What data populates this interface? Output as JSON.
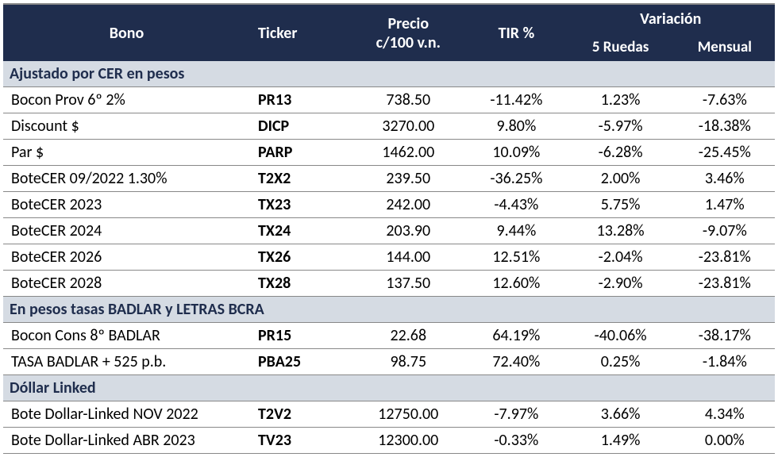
{
  "header": {
    "bono": "Bono",
    "ticker": "Ticker",
    "precio": "Precio c/100 v.n.",
    "precio_line1": "Precio",
    "precio_line2": "c/100 v.n.",
    "tir": "TIR %",
    "variacion": "Variación",
    "var_5ruedas": "5 Ruedas",
    "var_mensual": "Mensual"
  },
  "colors": {
    "header_bg": "#1f2d4d",
    "header_fg": "#ffffff",
    "section_bg": "#d5dbe3",
    "section_fg": "#1f2d4d",
    "row_bg": "#ffffff",
    "row_fg": "#000000",
    "border": "#888888"
  },
  "sections": [
    {
      "title": "Ajustado por CER en pesos",
      "rows": [
        {
          "name": "Bocon Prov 6º 2%",
          "ticker": "PR13",
          "precio": "738.50",
          "tir": "-11.42%",
          "var5": "1.23%",
          "varmes": "-7.63%"
        },
        {
          "name": "Discount $",
          "ticker": "DICP",
          "precio": "3270.00",
          "tir": "9.80%",
          "var5": "-5.97%",
          "varmes": "-18.38%"
        },
        {
          "name": "Par $",
          "ticker": "PARP",
          "precio": "1462.00",
          "tir": "10.09%",
          "var5": "-6.28%",
          "varmes": "-25.45%"
        },
        {
          "name": "BoteCER  09/2022 1.30%",
          "ticker": "T2X2",
          "precio": "239.50",
          "tir": "-36.25%",
          "var5": "2.00%",
          "varmes": "3.46%"
        },
        {
          "name": "BoteCER 2023",
          "ticker": "TX23",
          "precio": "242.00",
          "tir": "-4.43%",
          "var5": "5.75%",
          "varmes": "1.47%"
        },
        {
          "name": "BoteCER 2024",
          "ticker": "TX24",
          "precio": "203.90",
          "tir": "9.44%",
          "var5": "13.28%",
          "varmes": "-9.07%"
        },
        {
          "name": "BoteCER 2026",
          "ticker": "TX26",
          "precio": "144.00",
          "tir": "12.51%",
          "var5": "-2.04%",
          "varmes": "-23.81%"
        },
        {
          "name": "BoteCER 2028",
          "ticker": "TX28",
          "precio": "137.50",
          "tir": "12.60%",
          "var5": "-2.90%",
          "varmes": "-23.81%"
        }
      ]
    },
    {
      "title": "En pesos tasas BADLAR y LETRAS BCRA",
      "rows": [
        {
          "name": "Bocon Cons 8º BADLAR",
          "ticker": "PR15",
          "precio": "22.68",
          "tir": "64.19%",
          "var5": "-40.06%",
          "varmes": "-38.17%"
        },
        {
          "name": "TASA BADLAR + 525 p.b.",
          "ticker": "PBA25",
          "precio": "98.75",
          "tir": "72.40%",
          "var5": "0.25%",
          "varmes": "-1.84%"
        }
      ]
    },
    {
      "title": "Dóllar Linked",
      "rows": [
        {
          "name": "Bote Dollar-Linked   NOV 2022",
          "ticker": "T2V2",
          "precio": "12750.00",
          "tir": "-7.97%",
          "var5": "3.66%",
          "varmes": "4.34%"
        },
        {
          "name": "Bote Dollar-Linked ABR 2023",
          "ticker": "TV23",
          "precio": "12300.00",
          "tir": "-0.33%",
          "var5": "1.49%",
          "varmes": "0.00%"
        }
      ]
    }
  ]
}
